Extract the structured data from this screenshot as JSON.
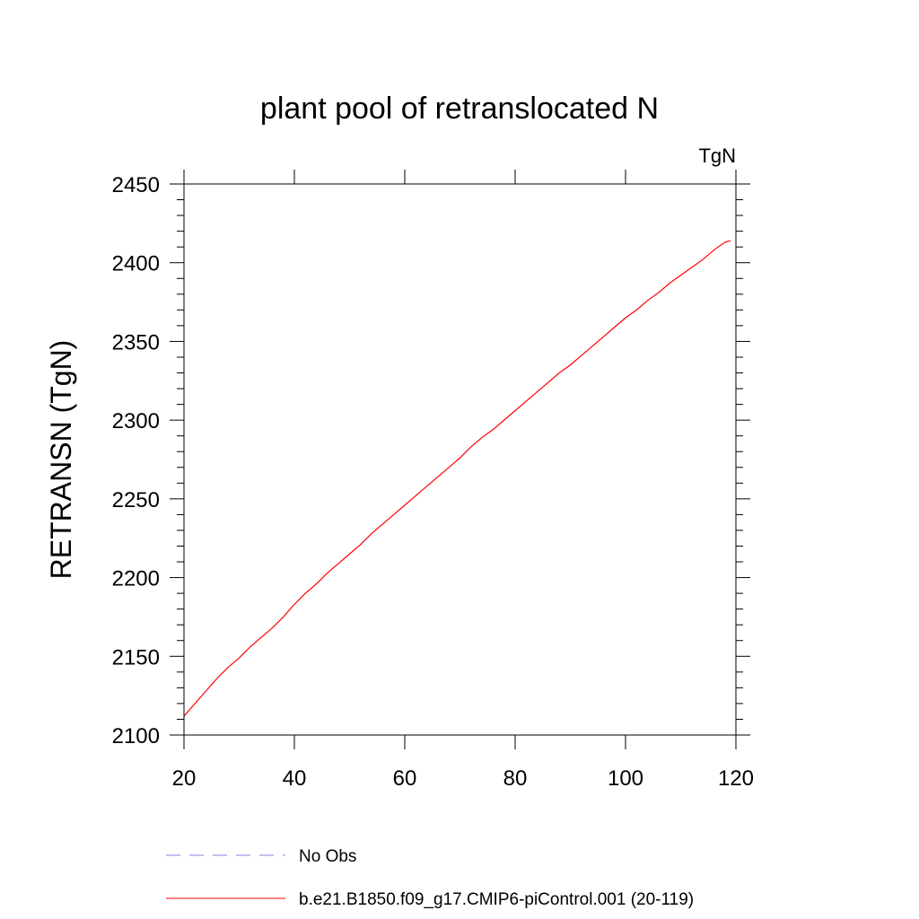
{
  "chart_data": {
    "type": "line",
    "title": "plant pool of retranslocated N",
    "units_label": "TgN",
    "ylabel": "RETRANSN  (TgN)",
    "xlabel": "",
    "xlim": [
      20,
      120
    ],
    "ylim": [
      2100,
      2450
    ],
    "x_ticks": [
      20,
      40,
      60,
      80,
      100,
      120
    ],
    "y_ticks": [
      2100,
      2150,
      2200,
      2250,
      2300,
      2350,
      2400,
      2450
    ],
    "x_tick_labels": [
      "20",
      "40",
      "60",
      "80",
      "100",
      "120"
    ],
    "y_tick_labels": [
      "2100",
      "2150",
      "2200",
      "2250",
      "2300",
      "2350",
      "2400",
      "2450"
    ],
    "grid": false,
    "legend_position": "bottom",
    "series": [
      {
        "name": "b.e21.B1850.f09_g17.CMIP6-piControl.001 (20-119)",
        "color": "#ff0000",
        "style": "solid",
        "x": [
          20,
          22,
          24,
          26,
          28,
          30,
          32,
          34,
          36,
          38,
          40,
          42,
          44,
          46,
          48,
          50,
          52,
          54,
          56,
          58,
          60,
          62,
          64,
          66,
          68,
          70,
          72,
          74,
          76,
          78,
          80,
          82,
          84,
          86,
          88,
          90,
          92,
          94,
          96,
          98,
          100,
          102,
          104,
          106,
          108,
          110,
          112,
          114,
          116,
          118,
          119
        ],
        "y": [
          2112,
          2120,
          2128,
          2136,
          2143,
          2149,
          2156,
          2162,
          2168,
          2175,
          2183,
          2190,
          2196,
          2203,
          2209,
          2215,
          2221,
          2228,
          2234,
          2240,
          2246,
          2252,
          2258,
          2264,
          2270,
          2276,
          2283,
          2289,
          2294,
          2300,
          2306,
          2312,
          2318,
          2324,
          2330,
          2335,
          2341,
          2347,
          2353,
          2359,
          2365,
          2370,
          2376,
          2381,
          2387,
          2392,
          2397,
          2402,
          2408,
          2413,
          2414
        ]
      }
    ],
    "legend": [
      {
        "label": "No Obs",
        "color": "#8080e0",
        "style": "dashed"
      },
      {
        "label": "b.e21.B1850.f09_g17.CMIP6-piControl.001 (20-119)",
        "color": "#ff0000",
        "style": "solid"
      }
    ]
  }
}
